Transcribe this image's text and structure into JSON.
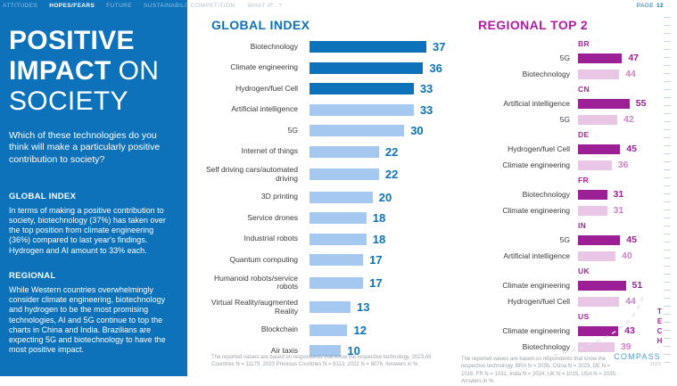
{
  "nav": {
    "blue_items": [
      "ATTITUDES",
      "HOPES/FEARS",
      "FUTURE",
      "SUSTAINABILITY"
    ],
    "active_item": "HOPES/FEARS",
    "white_items": [
      "COMPETITION",
      "WHAT IF...?"
    ],
    "page_label": "PAGE",
    "page_number": "12"
  },
  "sidebar": {
    "title": {
      "line1": "POSITIVE",
      "line2_bold": "IMPACT",
      "line2_light": "ON",
      "line3": "SOCIETY"
    },
    "question": "Which of these technologies do you think will make a particularly positive contribution to society?",
    "global_heading": "GLOBAL INDEX",
    "global_body": "In terms of making a positive contribution to society, biotechnology (37%) has taken over the top position from climate engineering (36%) compared to last year's findings. Hydrogen and AI amount to 33% each.",
    "regional_heading": "REGIONAL",
    "regional_body": "While Western countries overwhelmingly consider climate engineering, biotechnology and hydrogen to be the most promising technologies, AI and 5G continue to top the charts in China and India. Brazilians are expecting 5G and biotechnology to have the most positive impact."
  },
  "chart_data": [
    {
      "type": "bar",
      "orientation": "horizontal",
      "title": "GLOBAL INDEX",
      "unit": "%",
      "xlim": [
        0,
        40
      ],
      "emphasized_count": 3,
      "categories": [
        "Biotechnology",
        "Climate engineering",
        "Hydrogen/fuel Cell",
        "Artificial intelligence",
        "5G",
        "Internet of things",
        "Self driving cars/automated driving",
        "3D printing",
        "Service drones",
        "Industrial robots",
        "Quantum computing",
        "Humanoid robots/service robots",
        "Virtual Reality/augmented Reality",
        "Blockchain",
        "Air taxis"
      ],
      "values": [
        37,
        36,
        33,
        33,
        30,
        22,
        22,
        20,
        18,
        18,
        17,
        17,
        13,
        12,
        10
      ],
      "footnote": "The reported values are based on respondents that know the respective technology. 2023 All Countries N = 11179, 2023 Previous Countries N = 8113, 2022 N = 8076. Answers in %."
    },
    {
      "type": "bar",
      "orientation": "horizontal",
      "title": "REGIONAL TOP 2",
      "unit": "%",
      "xlim": [
        0,
        60
      ],
      "groups": [
        {
          "country": "BR",
          "items": [
            {
              "label": "5G",
              "value": 47
            },
            {
              "label": "Biotechnology",
              "value": 44
            }
          ]
        },
        {
          "country": "CN",
          "items": [
            {
              "label": "Artificial intelligence",
              "value": 55
            },
            {
              "label": "5G",
              "value": 42
            }
          ]
        },
        {
          "country": "DE",
          "items": [
            {
              "label": "Hydrogen/fuel Cell",
              "value": 45
            },
            {
              "label": "Climate engineering",
              "value": 36
            }
          ]
        },
        {
          "country": "FR",
          "items": [
            {
              "label": "Biotechnology",
              "value": 31
            },
            {
              "label": "Climate engineering",
              "value": 31
            }
          ]
        },
        {
          "country": "IN",
          "items": [
            {
              "label": "5G",
              "value": 45
            },
            {
              "label": "Artificial intelligence",
              "value": 40
            }
          ]
        },
        {
          "country": "UK",
          "items": [
            {
              "label": "Climate engineering",
              "value": 51
            },
            {
              "label": "Hydrogen/fuel Cell",
              "value": 44
            }
          ]
        },
        {
          "country": "US",
          "items": [
            {
              "label": "Climate engineering",
              "value": 43
            },
            {
              "label": "Biotechnology",
              "value": 39
            }
          ]
        }
      ],
      "footnote": "The reported values are based on respondents that know the respective technology. BRA N = 2035, China N = 2023, DE N = 1016, FR N = 1031, India N = 2024, UK N = 1015, USA N = 2035. Answers in %."
    }
  ],
  "logo": {
    "vertical": "TECH",
    "name": "COMPASS",
    "year": "2023"
  },
  "colors": {
    "brand_blue": "#0d72b9",
    "light_blue_bar": "#a4c8f0",
    "magenta": "#9c1f96",
    "light_pink_bar": "#e9c6e5",
    "heading_magenta": "#b11ba5",
    "footnote_gray": "#9aa2a9"
  }
}
